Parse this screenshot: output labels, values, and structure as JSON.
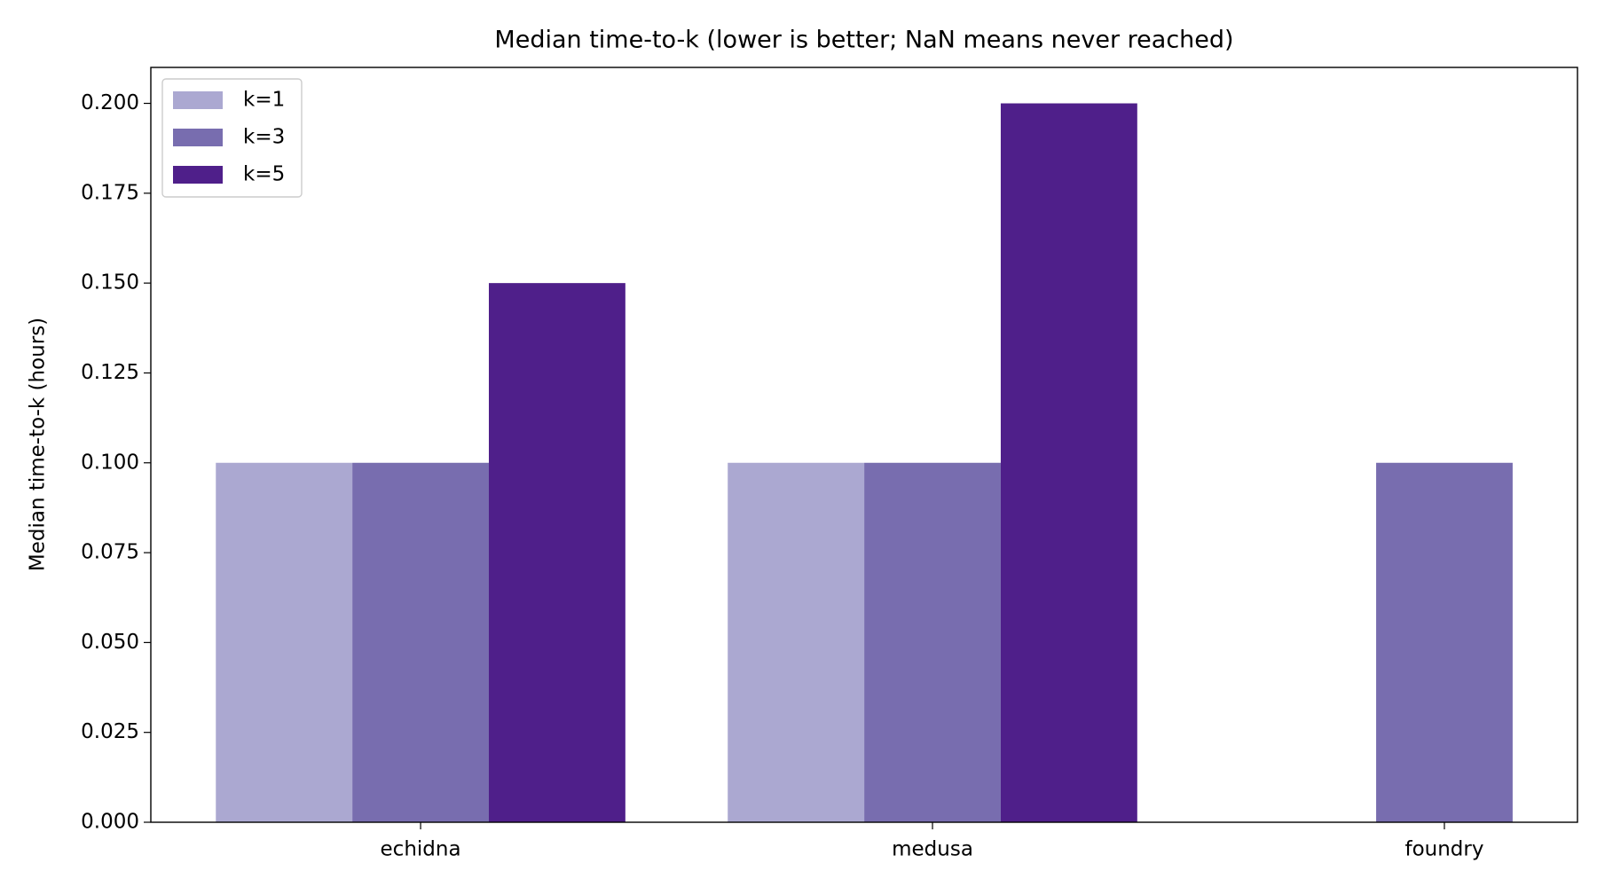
{
  "chart_data": {
    "type": "bar",
    "title": "Median time-to-k (lower is better; NaN means never reached)",
    "y_label": "Median time-to-k (hours)",
    "categories": [
      "echidna",
      "medusa",
      "foundry"
    ],
    "series": [
      {
        "name": "k=1",
        "color": "#aba8d1",
        "values": [
          0.1,
          0.1,
          null
        ]
      },
      {
        "name": "k=3",
        "color": "#786daf",
        "values": [
          0.1,
          0.1,
          0.1
        ]
      },
      {
        "name": "k=5",
        "color": "#4f1f8a",
        "values": [
          0.15,
          0.2,
          null
        ]
      }
    ],
    "ylim": [
      0,
      0.21
    ],
    "yticks": [
      {
        "value": 0,
        "label": "0.000"
      },
      {
        "value": 0.025,
        "label": "0.025"
      },
      {
        "value": 0.05,
        "label": "0.050"
      },
      {
        "value": 0.075,
        "label": "0.075"
      },
      {
        "value": 0.1,
        "label": "0.100"
      },
      {
        "value": 0.125,
        "label": "0.125"
      },
      {
        "value": 0.15,
        "label": "0.150"
      },
      {
        "value": 0.175,
        "label": "0.175"
      },
      {
        "value": 0.2,
        "label": "0.200"
      }
    ],
    "legend": "upper left",
    "grid": false
  }
}
